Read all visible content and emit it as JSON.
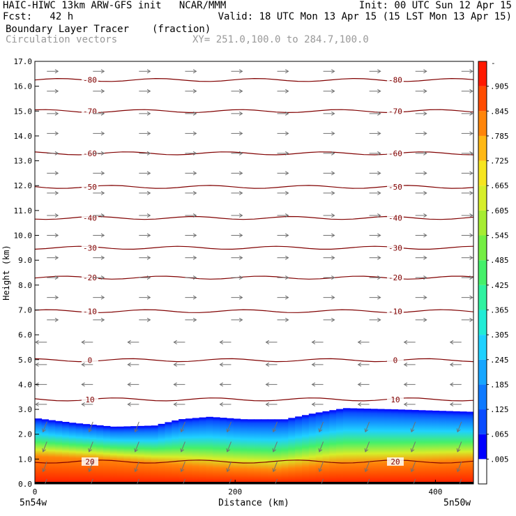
{
  "header": {
    "line1_left": "HAIC-HIWC 13km ARW-GFS init   NCAR/MMM",
    "line1_right": "Init: 00 UTC Sun 12 Apr 15",
    "line2_left": "Fcst:   42 h",
    "line2_right": "Valid: 18 UTC Mon 13 Apr 15 (15 LST Mon 13 Apr 15)",
    "field_name": "Boundary Layer Tracer",
    "field_units": "(fraction)",
    "vector_name": "Circulation vectors",
    "xy_range": "XY= 251.0,100.0 to 284.7,100.0"
  },
  "chart_data": {
    "type": "heatmap",
    "title": "Boundary Layer Tracer",
    "units": "(fraction)",
    "xlabel": "Distance (km)",
    "ylabel": "Height (km)",
    "xlim": [
      0,
      438
    ],
    "ylim": [
      0,
      17
    ],
    "x_ticks": [
      0,
      200,
      400
    ],
    "x_end_labels": [
      "5n54w",
      "5n50w"
    ],
    "y_ticks": [
      "0.0",
      "1.0",
      "2.0",
      "3.0",
      "4.0",
      "5.0",
      "6.0",
      "7.0",
      "8.0",
      "9.0",
      "10.0",
      "11.0",
      "12.0",
      "13.0",
      "14.0",
      "15.0",
      "16.0",
      "17.0"
    ],
    "colorbar": {
      "levels": [
        ".005",
        ".065",
        ".125",
        ".185",
        ".245",
        ".305",
        ".365",
        ".425",
        ".485",
        ".545",
        ".605",
        ".665",
        ".725",
        ".785",
        ".845",
        ".905"
      ],
      "colors": [
        "#ffffff",
        "#0000ff",
        "#0a4cff",
        "#0f7aff",
        "#17a6ff",
        "#1fd1ff",
        "#22ecd6",
        "#2ff2a0",
        "#45f06a",
        "#74ee43",
        "#a6ec32",
        "#d6ee2a",
        "#f6e51f",
        "#ffb814",
        "#ff850a",
        "#ff4c00",
        "#ff1a00"
      ],
      "top_marker": "-"
    },
    "tracer_top_km": [
      [
        0,
        2.65
      ],
      [
        40,
        2.45
      ],
      [
        80,
        2.3
      ],
      [
        120,
        2.35
      ],
      [
        145,
        2.6
      ],
      [
        175,
        2.7
      ],
      [
        210,
        2.6
      ],
      [
        250,
        2.6
      ],
      [
        280,
        2.85
      ],
      [
        310,
        3.05
      ],
      [
        360,
        3.0
      ],
      [
        438,
        2.9
      ]
    ],
    "high_core_top_km": [
      [
        0,
        1.1
      ],
      [
        60,
        1.0
      ],
      [
        130,
        0.8
      ],
      [
        180,
        0.65
      ],
      [
        240,
        0.55
      ],
      [
        300,
        0.8
      ],
      [
        360,
        0.85
      ],
      [
        438,
        0.95
      ]
    ],
    "contour_color": "#800000",
    "contours": [
      {
        "label": "-80",
        "height_km": 16.25
      },
      {
        "label": "-70",
        "height_km": 15.0
      },
      {
        "label": "-60",
        "height_km": 13.3
      },
      {
        "label": "-50",
        "height_km": 11.95
      },
      {
        "label": "-40",
        "height_km": 10.7
      },
      {
        "label": "-30",
        "height_km": 9.5
      },
      {
        "label": "-20",
        "height_km": 8.3
      },
      {
        "label": "-10",
        "height_km": 6.95
      },
      {
        "label": "0",
        "height_km": 4.98
      },
      {
        "label": "10",
        "height_km": 3.4
      },
      {
        "label": "20",
        "height_km": 0.9
      }
    ],
    "vectors": {
      "color": "#707070",
      "rows_km": [
        16.6,
        15.8,
        14.9,
        14.1,
        13.3,
        12.5,
        11.7,
        10.8,
        10.0,
        9.1,
        8.3,
        7.5,
        6.6,
        5.7,
        4.8,
        4.0,
        3.2,
        2.5,
        1.7,
        0.9,
        0.2
      ],
      "columns_km": [
        12,
        58,
        104,
        150,
        196,
        242,
        288,
        334,
        380,
        426
      ]
    }
  }
}
